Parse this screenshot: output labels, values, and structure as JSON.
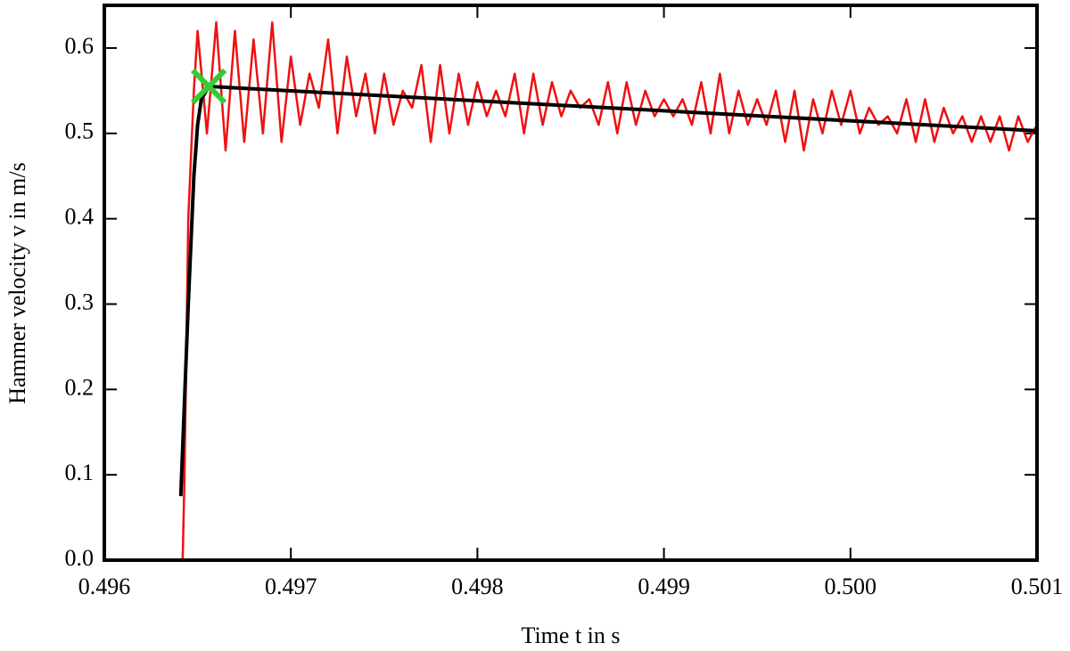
{
  "chart_data": {
    "type": "line",
    "xlabel": "Time t in s",
    "ylabel": "Hammer velocity v in m/s",
    "xlim": [
      0.496,
      0.501
    ],
    "ylim": [
      0,
      0.65
    ],
    "xticks": [
      0.496,
      0.497,
      0.498,
      0.499,
      {
        "value": 0.5,
        "label": "0.500"
      },
      0.501
    ],
    "yticks": [
      {
        "value": 0,
        "label": "0.0"
      },
      0.1,
      0.2,
      0.3,
      0.4,
      0.5,
      0.6
    ],
    "series": [
      {
        "color": "#ee1111",
        "x": [
          0.49642,
          0.49643,
          0.49645,
          0.49648,
          0.4965,
          0.49655,
          0.4966,
          0.49665,
          0.4967,
          0.49675,
          0.4968,
          0.49685,
          0.4969,
          0.49695,
          0.497,
          0.49705,
          0.4971,
          0.49715,
          0.4972,
          0.49725,
          0.4973,
          0.49735,
          0.4974,
          0.49745,
          0.4975,
          0.49755,
          0.4976,
          0.49765,
          0.4977,
          0.49775,
          0.4978,
          0.49785,
          0.4979,
          0.49795,
          0.498,
          0.49805,
          0.4981,
          0.49815,
          0.4982,
          0.49825,
          0.4983,
          0.49835,
          0.4984,
          0.49845,
          0.4985,
          0.49855,
          0.4986,
          0.49865,
          0.4987,
          0.49875,
          0.4988,
          0.49885,
          0.4989,
          0.49895,
          0.499,
          0.49905,
          0.4991,
          0.49915,
          0.4992,
          0.49925,
          0.4993,
          0.49935,
          0.4994,
          0.49945,
          0.4995,
          0.49955,
          0.4996,
          0.49965,
          0.4997,
          0.49975,
          0.4998,
          0.49985,
          0.4999,
          0.49995,
          0.5,
          0.50005,
          0.5001,
          0.50015,
          0.5002,
          0.50025,
          0.5003,
          0.50035,
          0.5004,
          0.50045,
          0.5005,
          0.50055,
          0.5006,
          0.50065,
          0.5007,
          0.50075,
          0.5008,
          0.50085,
          0.5009,
          0.50095,
          0.501
        ],
        "values": [
          0,
          0.1,
          0.4,
          0.55,
          0.62,
          0.5,
          0.63,
          0.48,
          0.62,
          0.49,
          0.61,
          0.5,
          0.63,
          0.49,
          0.59,
          0.51,
          0.57,
          0.53,
          0.61,
          0.5,
          0.59,
          0.52,
          0.57,
          0.5,
          0.57,
          0.51,
          0.55,
          0.53,
          0.58,
          0.49,
          0.58,
          0.5,
          0.57,
          0.51,
          0.56,
          0.52,
          0.55,
          0.52,
          0.57,
          0.5,
          0.57,
          0.51,
          0.56,
          0.52,
          0.55,
          0.53,
          0.54,
          0.51,
          0.56,
          0.5,
          0.56,
          0.51,
          0.55,
          0.52,
          0.54,
          0.52,
          0.54,
          0.51,
          0.56,
          0.5,
          0.57,
          0.5,
          0.55,
          0.51,
          0.54,
          0.51,
          0.55,
          0.49,
          0.55,
          0.48,
          0.54,
          0.5,
          0.55,
          0.51,
          0.55,
          0.5,
          0.53,
          0.51,
          0.52,
          0.5,
          0.54,
          0.49,
          0.54,
          0.49,
          0.53,
          0.5,
          0.52,
          0.49,
          0.52,
          0.49,
          0.52,
          0.48,
          0.52,
          0.49,
          0.51
        ]
      },
      {
        "color": "#000000",
        "x": [
          0.49641,
          0.49645,
          0.49648,
          0.4965,
          0.49652,
          0.49656,
          0.501
        ],
        "values": [
          0.075,
          0.3,
          0.45,
          0.51,
          0.54,
          0.555,
          0.503
        ]
      },
      {
        "color": "#33cc33",
        "marker": "x",
        "x": [
          0.49656
        ],
        "values": [
          0.555
        ]
      }
    ]
  }
}
